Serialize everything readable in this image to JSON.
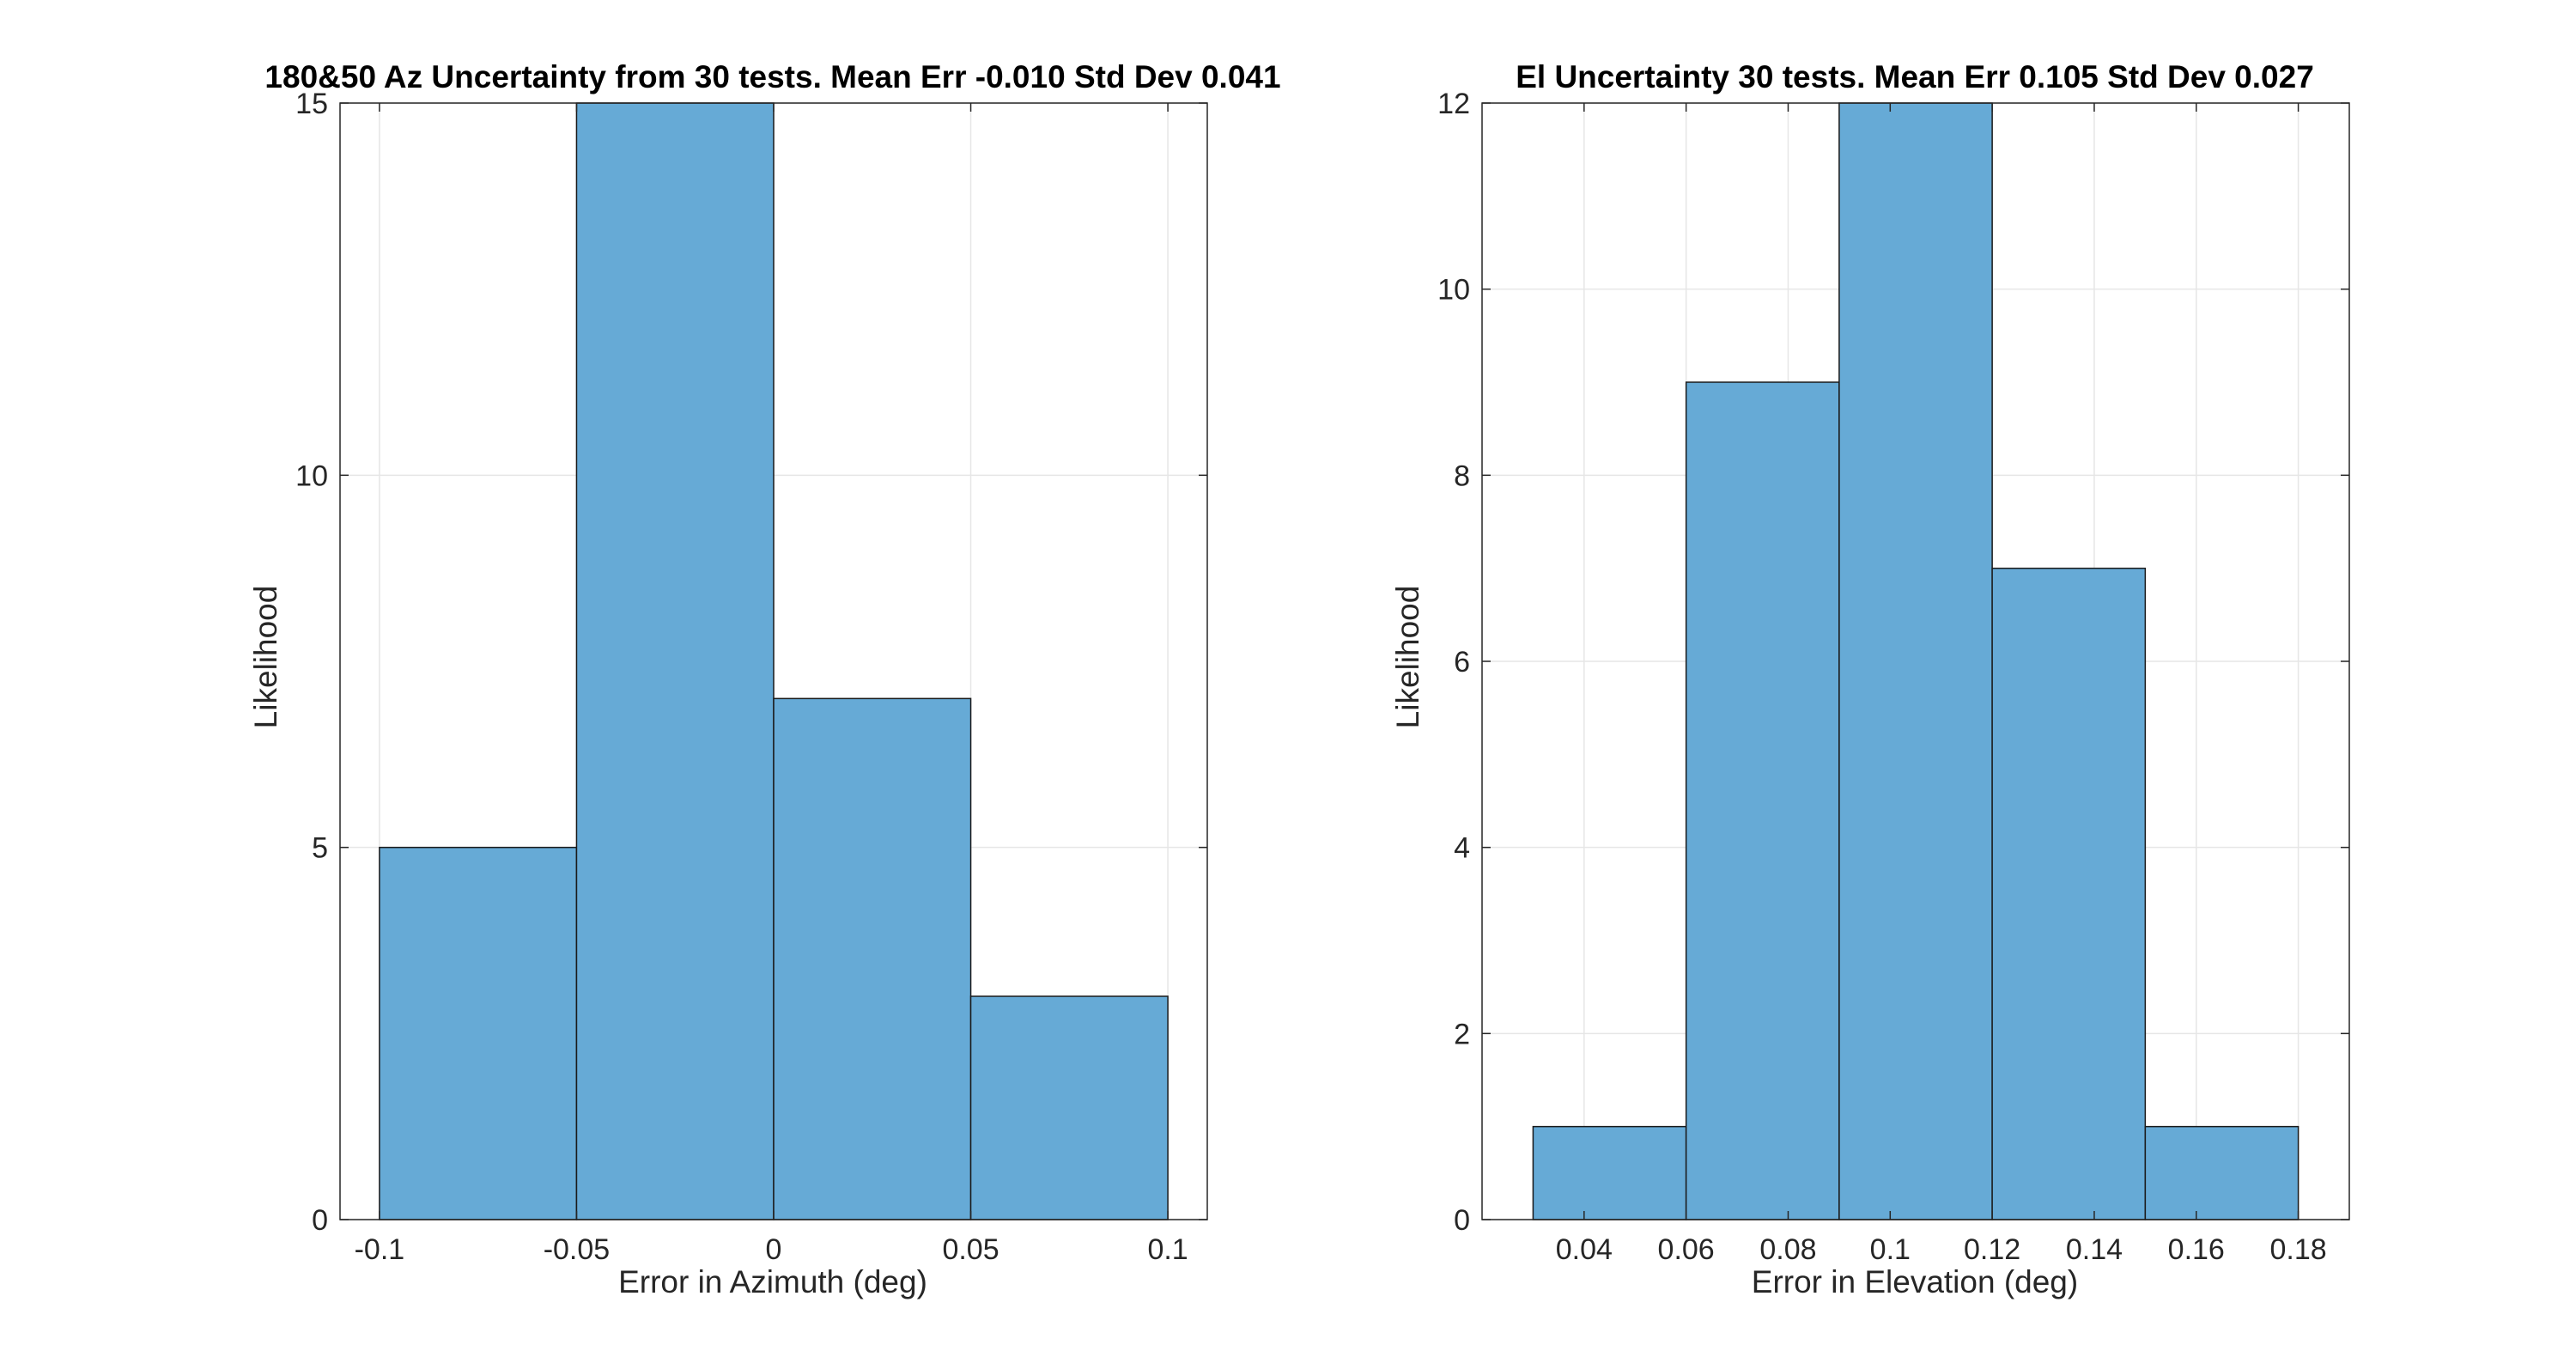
{
  "chart_data": [
    {
      "type": "bar",
      "title": "180&50 Az Uncertainty from 30 tests. Mean Err -0.010 Std Dev 0.041",
      "xlabel": "Error in Azimuth (deg)",
      "ylabel": "Likelihood",
      "xlim": [
        -0.11,
        0.11
      ],
      "ylim": [
        0,
        15
      ],
      "xticks": [
        -0.1,
        -0.05,
        0,
        0.05,
        0.1
      ],
      "xtick_labels": [
        "-0.1",
        "-0.05",
        "0",
        "0.05",
        "0.1"
      ],
      "yticks": [
        0,
        5,
        10,
        15
      ],
      "ytick_labels": [
        "0",
        "5",
        "10",
        "15"
      ],
      "bin_edges": [
        -0.1,
        -0.05,
        0,
        0.05,
        0.1
      ],
      "values": [
        5,
        15,
        7,
        3
      ],
      "bar_color": "#66aad6",
      "grid": true
    },
    {
      "type": "bar",
      "title": "El Uncertainty 30 tests. Mean Err 0.105 Std Dev 0.027",
      "xlabel": "Error in Elevation (deg)",
      "ylabel": "Likelihood",
      "xlim": [
        0.02,
        0.19
      ],
      "ylim": [
        0,
        12
      ],
      "xticks": [
        0.04,
        0.06,
        0.08,
        0.1,
        0.12,
        0.14,
        0.16,
        0.18
      ],
      "xtick_labels": [
        "0.04",
        "0.06",
        "0.08",
        "0.1",
        "0.12",
        "0.14",
        "0.16",
        "0.18"
      ],
      "yticks": [
        0,
        2,
        4,
        6,
        8,
        10,
        12
      ],
      "ytick_labels": [
        "0",
        "2",
        "4",
        "6",
        "8",
        "10",
        "12"
      ],
      "bin_edges": [
        0.03,
        0.06,
        0.09,
        0.12,
        0.15,
        0.18
      ],
      "values": [
        1,
        9,
        12,
        7,
        1
      ],
      "bar_color": "#66aad6",
      "grid": true
    }
  ]
}
